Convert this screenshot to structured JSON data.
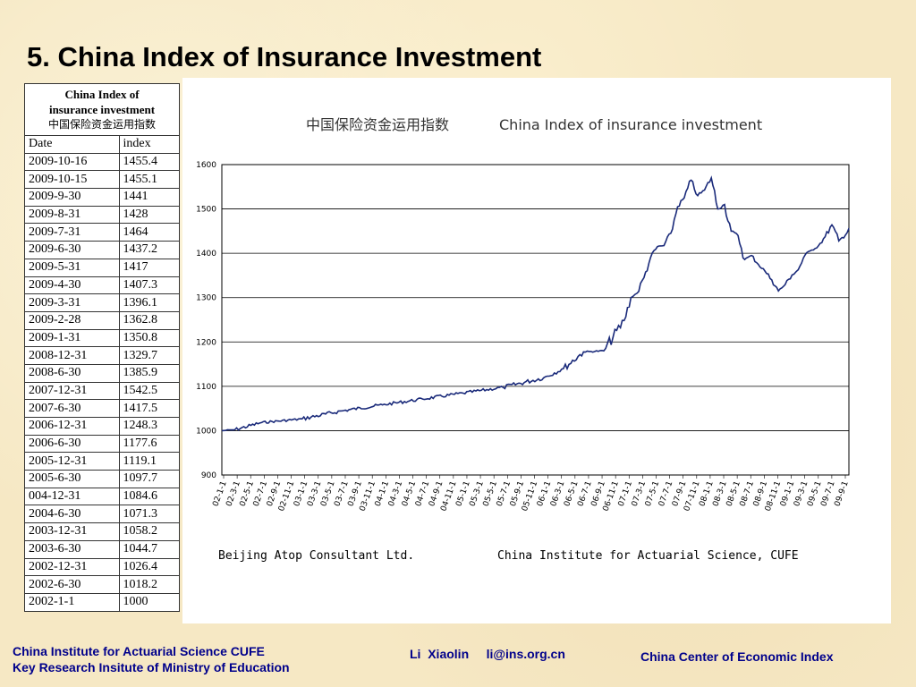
{
  "slide": {
    "title": "5. China Index of Insurance Investment"
  },
  "table": {
    "title_en_1": "China Index of",
    "title_en_2": "insurance investment",
    "title_cn": "中国保险资金运用指数",
    "col_date": "Date",
    "col_index": "index",
    "rows": [
      {
        "date": "2009-10-16",
        "index": "1455.4"
      },
      {
        "date": "2009-10-15",
        "index": "1455.1"
      },
      {
        "date": "2009-9-30",
        "index": "1441"
      },
      {
        "date": "2009-8-31",
        "index": "1428"
      },
      {
        "date": "2009-7-31",
        "index": "1464"
      },
      {
        "date": "2009-6-30",
        "index": "1437.2"
      },
      {
        "date": "2009-5-31",
        "index": "1417"
      },
      {
        "date": "2009-4-30",
        "index": "1407.3"
      },
      {
        "date": "2009-3-31",
        "index": "1396.1"
      },
      {
        "date": "2009-2-28",
        "index": "1362.8"
      },
      {
        "date": "2009-1-31",
        "index": "1350.8"
      },
      {
        "date": "2008-12-31",
        "index": "1329.7"
      },
      {
        "date": "2008-6-30",
        "index": "1385.9"
      },
      {
        "date": "2007-12-31",
        "index": "1542.5"
      },
      {
        "date": "2007-6-30",
        "index": "1417.5"
      },
      {
        "date": "2006-12-31",
        "index": "1248.3"
      },
      {
        "date": "2006-6-30",
        "index": "1177.6"
      },
      {
        "date": "2005-12-31",
        "index": "1119.1"
      },
      {
        "date": "2005-6-30",
        "index": "1097.7"
      },
      {
        "date": "004-12-31",
        "index": "1084.6"
      },
      {
        "date": "2004-6-30",
        "index": "1071.3"
      },
      {
        "date": "2003-12-31",
        "index": "1058.2"
      },
      {
        "date": "2003-6-30",
        "index": "1044.7"
      },
      {
        "date": "2002-12-31",
        "index": "1026.4"
      },
      {
        "date": "2002-6-30",
        "index": "1018.2"
      },
      {
        "date": "2002-1-1",
        "index": "1000"
      }
    ]
  },
  "chart_data": {
    "type": "line",
    "title_cn": "中国保险资金运用指数",
    "title": "China Index of insurance investment",
    "xlabel": "",
    "ylabel": "",
    "ylim": [
      900,
      1600
    ],
    "yticks": [
      "900",
      "1000",
      "1100",
      "1200",
      "1300",
      "1400",
      "1500",
      "1600"
    ],
    "xticks": [
      "02-1-1",
      "02-3-1",
      "02-5-1",
      "02-7-1",
      "02-9-1",
      "02-11-1",
      "03-1-1",
      "03-3-1",
      "03-5-1",
      "03-7-1",
      "03-9-1",
      "03-11-1",
      "04-1-1",
      "04-3-1",
      "04-5-1",
      "04-7-1",
      "04-9-1",
      "04-11-1",
      "05-1-1",
      "05-3-1",
      "05-5-1",
      "05-7-1",
      "05-9-1",
      "05-11-1",
      "06-1-1",
      "06-3-1",
      "06-5-1",
      "06-7-1",
      "06-9-1",
      "06-11-1",
      "07-1-1",
      "07-3-1",
      "07-5-1",
      "07-7-1",
      "07-9-1",
      "07-11-1",
      "08-1-1",
      "08-3-1",
      "08-5-1",
      "08-7-1",
      "08-9-1",
      "08-11-1",
      "09-1-1",
      "09-3-1",
      "09-5-1",
      "09-7-1",
      "09-9-1"
    ],
    "grid": true,
    "legend": "none",
    "series": [
      {
        "x": [
          "2002-01-01",
          "2002-03-01",
          "2002-06-30",
          "2002-12-31",
          "2003-06-30",
          "2003-12-31",
          "2004-06-30",
          "2004-12-31",
          "2005-06-30",
          "2005-12-31",
          "2006-03-31",
          "2006-06-30",
          "2006-09-30",
          "2006-12-31",
          "2007-01-31",
          "2007-02-28",
          "2007-03-31",
          "2007-04-30",
          "2007-05-31",
          "2007-06-30",
          "2007-07-31",
          "2007-08-31",
          "2007-09-30",
          "2007-10-31",
          "2007-11-30",
          "2007-12-31",
          "2008-01-31",
          "2008-02-29",
          "2008-03-31",
          "2008-04-30",
          "2008-05-31",
          "2008-06-30",
          "2008-07-31",
          "2008-08-31",
          "2008-09-30",
          "2008-10-31",
          "2008-11-30",
          "2008-12-31",
          "2009-01-31",
          "2009-02-28",
          "2009-03-31",
          "2009-04-30",
          "2009-05-31",
          "2009-06-30",
          "2009-07-31",
          "2009-08-31",
          "2009-09-30",
          "2009-10-15",
          "2009-10-16"
        ],
        "values": [
          1000,
          1002,
          1018.2,
          1026.4,
          1044.7,
          1058.2,
          1071.3,
          1084.6,
          1097.7,
          1119.1,
          1140,
          1177.6,
          1180,
          1248.3,
          1300,
          1310,
          1345,
          1390,
          1415,
          1417.5,
          1445,
          1505,
          1525,
          1565,
          1530,
          1542.5,
          1570,
          1500,
          1510,
          1450,
          1440,
          1385.9,
          1395,
          1375,
          1360,
          1340,
          1315,
          1329.7,
          1350.8,
          1362.8,
          1396.1,
          1407.3,
          1417,
          1437.2,
          1464,
          1428,
          1441,
          1455.1,
          1455.4
        ]
      }
    ]
  },
  "credits": {
    "left": "Beijing Atop Consultant Ltd.",
    "right": "China Institute for Actuarial Science, CUFE"
  },
  "footer": {
    "line1": "China Institute for Actuarial Science CUFE",
    "line2": "Key Research Insitute of Ministry of Education",
    "author": "Li  Xiaolin     li@ins.org.cn",
    "right": "China Center of Economic Index"
  },
  "colors": {
    "line": "#1a2a7a",
    "footer_text": "#00008b",
    "background": "#f6e8c4"
  }
}
